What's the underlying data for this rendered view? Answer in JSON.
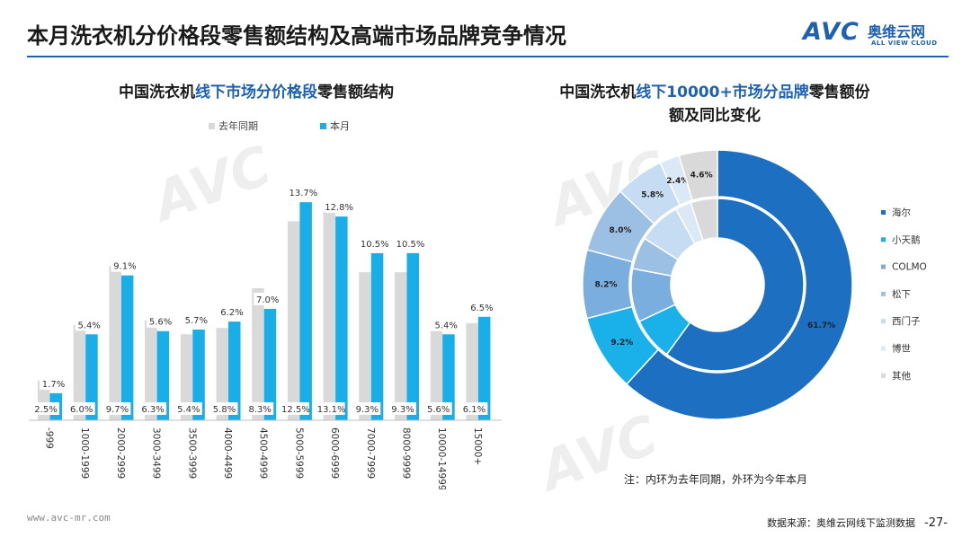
{
  "header": {
    "title": "本月洗衣机分价格段零售额结构及高端市场品牌竞争情况",
    "logo_text": "AVC",
    "logo_cn": "奥维云网",
    "logo_en": "ALL VIEW CLOUD"
  },
  "left_chart": {
    "title_pre": "中国洗衣机",
    "title_hl": "线下市场分价格段",
    "title_post": "零售额结构"
  },
  "right_chart": {
    "title_pre": "中国洗衣机",
    "title_hl": "线下10000+市场分品牌",
    "title_post1": "零售额份",
    "title_line2": "额及同比变化"
  },
  "note": "注：内环为去年同期，外环为今年本月",
  "footer": {
    "website": "www.avc-mr.com",
    "source": "数据来源：奥维云网线下监测数据",
    "page": "-27-"
  },
  "colors": {
    "accent": "#1d61b0",
    "current": "#1aaee8",
    "last_year": "#d9d9d9"
  },
  "chart_data": [
    {
      "type": "bar",
      "categories": [
        "-999",
        "1000-1999",
        "2000-2999",
        "3000-3499",
        "3500-3999",
        "4000-4499",
        "4500-4999",
        "5000-5999",
        "6000-6999",
        "7000-7999",
        "8000-9999",
        "10000-14999",
        "15000+"
      ],
      "series": [
        {
          "name": "去年同期",
          "values": [
            2.5,
            6.0,
            9.7,
            6.3,
            5.4,
            5.8,
            8.3,
            12.5,
            13.1,
            9.3,
            9.3,
            5.6,
            6.1
          ],
          "labels": [
            "2.5%",
            "6.0%",
            "9.7%",
            "6.3%",
            "5.4%",
            "5.8%",
            "8.3%",
            "12.5%",
            "13.1%",
            "9.3%",
            "9.3%",
            "5.6%",
            "6.1%"
          ]
        },
        {
          "name": "本月",
          "values": [
            1.7,
            5.4,
            9.1,
            5.6,
            5.7,
            6.2,
            7.0,
            13.7,
            12.8,
            10.5,
            10.5,
            5.4,
            6.5
          ],
          "labels": [
            "1.7%",
            "5.4%",
            "9.1%",
            "5.6%",
            "5.7%",
            "6.2%",
            "7.0%",
            "13.7%",
            "12.8%",
            "10.5%",
            "10.5%",
            "5.4%",
            "6.5%"
          ]
        }
      ],
      "ylim": [
        0,
        14.5
      ],
      "grid": false,
      "legend": "top"
    },
    {
      "type": "pie",
      "subtype": "double-donut",
      "categories": [
        "海尔",
        "小天鹅",
        "COLMO",
        "松下",
        "西门子",
        "博世",
        "其他"
      ],
      "colors": [
        "#1d6fc1",
        "#1ab0ea",
        "#7aaedf",
        "#9cc0e4",
        "#c6dcf2",
        "#dbe9f7",
        "#d9d9d9"
      ],
      "series": [
        {
          "name": "本月",
          "ring": "outer",
          "values": [
            61.7,
            9.2,
            8.2,
            8.0,
            5.8,
            2.4,
            4.6
          ],
          "labels": [
            "61.7%",
            "9.2%",
            "8.2%",
            "8.0%",
            "5.8%",
            "2.4%",
            "4.6%"
          ]
        },
        {
          "name": "去年同期",
          "ring": "inner",
          "values": [
            60.0,
            8.0,
            10.0,
            6.0,
            8.0,
            3.0,
            5.0
          ]
        }
      ],
      "legend": "right"
    }
  ]
}
